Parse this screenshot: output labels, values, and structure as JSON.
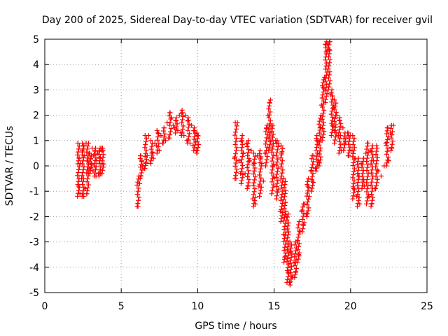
{
  "chart_data": {
    "type": "scatter",
    "title": "Day 200 of 2025, Sidereal Day-to-day VTEC variation (SDTVAR) for receiver gvil",
    "xlabel": "GPS time / hours",
    "ylabel": "SDTVAR / TECUs",
    "xlim": [
      0,
      25
    ],
    "ylim": [
      -5,
      5
    ],
    "xticks": [
      0,
      5,
      10,
      15,
      20,
      25
    ],
    "yticks": [
      -5,
      -4,
      -3,
      -2,
      -1,
      0,
      1,
      2,
      3,
      4,
      5
    ],
    "grid": true,
    "marker": "+",
    "marker_color": "#ff0000",
    "series": [
      {
        "name": "SDTVAR",
        "points": [
          [
            2.2,
            -0.8
          ],
          [
            2.25,
            0.3
          ],
          [
            2.3,
            -1.1
          ],
          [
            2.35,
            0.1
          ],
          [
            2.4,
            -0.5
          ],
          [
            2.45,
            0.6
          ],
          [
            2.5,
            0.8
          ],
          [
            2.55,
            -1.2
          ],
          [
            2.6,
            0.4
          ],
          [
            2.65,
            -0.9
          ],
          [
            2.7,
            0.9
          ],
          [
            2.75,
            -1.1
          ],
          [
            2.8,
            0.2
          ],
          [
            2.85,
            -0.3
          ],
          [
            2.9,
            0.5
          ],
          [
            2.95,
            -0.1
          ],
          [
            3.0,
            0.3
          ],
          [
            3.05,
            0.1
          ],
          [
            3.1,
            0.7
          ],
          [
            3.15,
            -0.2
          ],
          [
            3.2,
            0.4
          ],
          [
            3.25,
            0.0
          ],
          [
            3.3,
            0.6
          ],
          [
            3.35,
            -0.4
          ],
          [
            3.4,
            0.2
          ],
          [
            3.45,
            0.5
          ],
          [
            3.5,
            -0.3
          ],
          [
            3.55,
            0.6
          ],
          [
            3.6,
            0.3
          ],
          [
            3.65,
            -0.3
          ],
          [
            3.7,
            0.7
          ],
          [
            3.75,
            0.1
          ],
          [
            3.8,
            0.6
          ],
          [
            6.1,
            -1.6
          ],
          [
            6.2,
            -0.7
          ],
          [
            6.25,
            0.4
          ],
          [
            6.3,
            -0.4
          ],
          [
            6.35,
            0.2
          ],
          [
            6.4,
            0.0
          ],
          [
            6.5,
            -0.1
          ],
          [
            6.6,
            0.1
          ],
          [
            6.7,
            0.4
          ],
          [
            6.8,
            1.2
          ],
          [
            6.9,
            0.1
          ],
          [
            7.0,
            0.5
          ],
          [
            7.1,
            0.3
          ],
          [
            7.2,
            0.9
          ],
          [
            7.3,
            0.8
          ],
          [
            7.4,
            1.3
          ],
          [
            7.5,
            0.6
          ],
          [
            7.6,
            1.2
          ],
          [
            7.7,
            0.9
          ],
          [
            7.8,
            1.5
          ],
          [
            7.9,
            1.0
          ],
          [
            8.0,
            1.7
          ],
          [
            8.1,
            1.1
          ],
          [
            8.2,
            2.1
          ],
          [
            8.3,
            1.9
          ],
          [
            8.4,
            1.6
          ],
          [
            8.5,
            1.5
          ],
          [
            8.6,
            1.8
          ],
          [
            8.7,
            1.4
          ],
          [
            8.8,
            2.0
          ],
          [
            8.9,
            1.3
          ],
          [
            9.0,
            2.1
          ],
          [
            9.1,
            1.2
          ],
          [
            9.2,
            2.0
          ],
          [
            9.3,
            1.0
          ],
          [
            9.4,
            1.8
          ],
          [
            9.5,
            0.9
          ],
          [
            9.6,
            1.6
          ],
          [
            9.7,
            0.8
          ],
          [
            9.8,
            1.4
          ],
          [
            9.9,
            0.6
          ],
          [
            10.0,
            1.2
          ],
          [
            12.4,
            0.3
          ],
          [
            12.5,
            -0.5
          ],
          [
            12.6,
            1.7
          ],
          [
            12.7,
            0.2
          ],
          [
            12.8,
            -0.3
          ],
          [
            12.9,
            1.0
          ],
          [
            13.0,
            0.5
          ],
          [
            13.1,
            -0.3
          ],
          [
            13.2,
            0.9
          ],
          [
            13.3,
            -0.8
          ],
          [
            13.4,
            0.2
          ],
          [
            13.5,
            0.6
          ],
          [
            13.6,
            -1.3
          ],
          [
            13.7,
            0.1
          ],
          [
            13.8,
            -1.5
          ],
          [
            13.9,
            0.4
          ],
          [
            14.0,
            -0.8
          ],
          [
            14.1,
            0.3
          ],
          [
            14.2,
            0.1
          ],
          [
            14.3,
            -0.6
          ],
          [
            14.4,
            0.5
          ],
          [
            14.5,
            1.5
          ],
          [
            14.6,
            2.0
          ],
          [
            14.7,
            2.5
          ],
          [
            14.8,
            1.6
          ],
          [
            14.9,
            0.0
          ],
          [
            15.0,
            -0.5
          ],
          [
            15.1,
            1.0
          ],
          [
            15.2,
            -1.0
          ],
          [
            15.3,
            0.9
          ],
          [
            15.4,
            -1.8
          ],
          [
            15.5,
            0.5
          ],
          [
            15.6,
            -2.7
          ],
          [
            15.7,
            -3.6
          ],
          [
            15.8,
            -2.0
          ],
          [
            15.9,
            -4.2
          ],
          [
            16.0,
            -4.6
          ],
          [
            16.1,
            -3.4
          ],
          [
            16.2,
            -4.4
          ],
          [
            16.3,
            -3.8
          ],
          [
            16.4,
            -4.2
          ],
          [
            16.5,
            -3.0
          ],
          [
            16.6,
            -3.5
          ],
          [
            16.7,
            -2.6
          ],
          [
            16.8,
            -1.8
          ],
          [
            16.9,
            -2.3
          ],
          [
            17.0,
            -1.5
          ],
          [
            17.1,
            -1.9
          ],
          [
            17.2,
            -0.8
          ],
          [
            17.3,
            -1.2
          ],
          [
            17.4,
            -0.2
          ],
          [
            17.5,
            -0.6
          ],
          [
            17.6,
            0.4
          ],
          [
            17.7,
            -0.1
          ],
          [
            17.8,
            1.0
          ],
          [
            17.9,
            0.2
          ],
          [
            18.0,
            1.5
          ],
          [
            18.1,
            2.4
          ],
          [
            18.2,
            3.1
          ],
          [
            18.3,
            3.5
          ],
          [
            18.35,
            4.8
          ],
          [
            18.4,
            4.5
          ],
          [
            18.5,
            4.8
          ],
          [
            18.6,
            4.6
          ],
          [
            18.65,
            4.9
          ],
          [
            18.7,
            2.8
          ],
          [
            18.8,
            1.6
          ],
          [
            18.9,
            2.3
          ],
          [
            19.0,
            1.4
          ],
          [
            19.1,
            2.0
          ],
          [
            19.2,
            1.2
          ],
          [
            19.3,
            1.8
          ],
          [
            19.4,
            0.6
          ],
          [
            19.5,
            1.5
          ],
          [
            19.6,
            0.9
          ],
          [
            19.7,
            1.1
          ],
          [
            19.8,
            1.3
          ],
          [
            19.9,
            0.4
          ],
          [
            20.0,
            1.2
          ],
          [
            20.1,
            0.6
          ],
          [
            20.2,
            -0.9
          ],
          [
            20.3,
            0.3
          ],
          [
            20.4,
            -1.2
          ],
          [
            20.5,
            -0.4
          ],
          [
            20.6,
            -1.5
          ],
          [
            20.7,
            0.1
          ],
          [
            20.8,
            -0.6
          ],
          [
            20.9,
            -0.8
          ],
          [
            21.0,
            0.5
          ],
          [
            21.1,
            0.9
          ],
          [
            21.2,
            -1.2
          ],
          [
            21.3,
            0.6
          ],
          [
            21.4,
            -1.5
          ],
          [
            21.5,
            0.2
          ],
          [
            21.6,
            -0.9
          ],
          [
            21.7,
            0.8
          ],
          [
            21.8,
            -0.2
          ],
          [
            22.0,
            -0.4
          ],
          [
            22.2,
            0.0
          ],
          [
            22.3,
            0.9
          ],
          [
            22.4,
            1.5
          ],
          [
            22.5,
            0.2
          ],
          [
            22.6,
            1.3
          ],
          [
            22.7,
            0.7
          ],
          [
            22.8,
            1.6
          ]
        ],
        "ranges": [
          [
            2.2,
            -1.2,
            0.9
          ],
          [
            2.5,
            -1.2,
            0.9
          ],
          [
            2.8,
            -1.1,
            0.9
          ],
          [
            3.0,
            -0.3,
            0.5
          ],
          [
            3.3,
            -0.4,
            0.7
          ],
          [
            3.6,
            -0.4,
            0.7
          ],
          [
            3.8,
            -0.3,
            0.7
          ],
          [
            6.1,
            -1.6,
            -0.4
          ],
          [
            6.3,
            -0.5,
            0.4
          ],
          [
            6.6,
            -0.1,
            1.2
          ],
          [
            7.0,
            0.2,
            1.0
          ],
          [
            7.4,
            0.5,
            1.4
          ],
          [
            7.8,
            0.9,
            1.5
          ],
          [
            8.2,
            1.1,
            2.1
          ],
          [
            8.6,
            1.3,
            1.9
          ],
          [
            9.0,
            1.2,
            2.2
          ],
          [
            9.4,
            0.9,
            1.9
          ],
          [
            9.8,
            0.6,
            1.5
          ],
          [
            10.0,
            0.5,
            1.3
          ],
          [
            12.5,
            -0.5,
            1.7
          ],
          [
            12.9,
            -0.7,
            1.2
          ],
          [
            13.3,
            -0.9,
            1.0
          ],
          [
            13.7,
            -1.6,
            0.5
          ],
          [
            14.1,
            -1.2,
            0.6
          ],
          [
            14.5,
            0.0,
            1.6
          ],
          [
            14.7,
            0.6,
            2.6
          ],
          [
            14.9,
            -1.1,
            1.6
          ],
          [
            15.2,
            -1.3,
            1.0
          ],
          [
            15.5,
            -2.2,
            0.8
          ],
          [
            15.7,
            -3.8,
            -0.5
          ],
          [
            15.9,
            -4.6,
            -1.9
          ],
          [
            16.1,
            -4.7,
            -3.0
          ],
          [
            16.4,
            -4.4,
            -3.0
          ],
          [
            16.6,
            -3.8,
            -2.2
          ],
          [
            16.9,
            -2.6,
            -1.5
          ],
          [
            17.2,
            -2.0,
            -0.5
          ],
          [
            17.5,
            -1.0,
            0.4
          ],
          [
            17.8,
            -0.2,
            1.2
          ],
          [
            18.0,
            0.0,
            2.0
          ],
          [
            18.2,
            1.0,
            3.4
          ],
          [
            18.4,
            2.5,
            4.9
          ],
          [
            18.6,
            3.0,
            4.9
          ],
          [
            18.8,
            1.2,
            3.0
          ],
          [
            19.0,
            0.9,
            2.6
          ],
          [
            19.3,
            0.5,
            1.9
          ],
          [
            19.6,
            0.6,
            1.3
          ],
          [
            19.9,
            0.4,
            1.3
          ],
          [
            20.2,
            -1.3,
            1.2
          ],
          [
            20.5,
            -1.6,
            0.3
          ],
          [
            20.8,
            -0.9,
            0.3
          ],
          [
            21.1,
            -1.5,
            0.9
          ],
          [
            21.4,
            -1.6,
            0.8
          ],
          [
            21.7,
            -0.9,
            0.7
          ],
          [
            22.4,
            0.0,
            1.5
          ],
          [
            22.7,
            0.6,
            1.6
          ]
        ]
      }
    ]
  }
}
